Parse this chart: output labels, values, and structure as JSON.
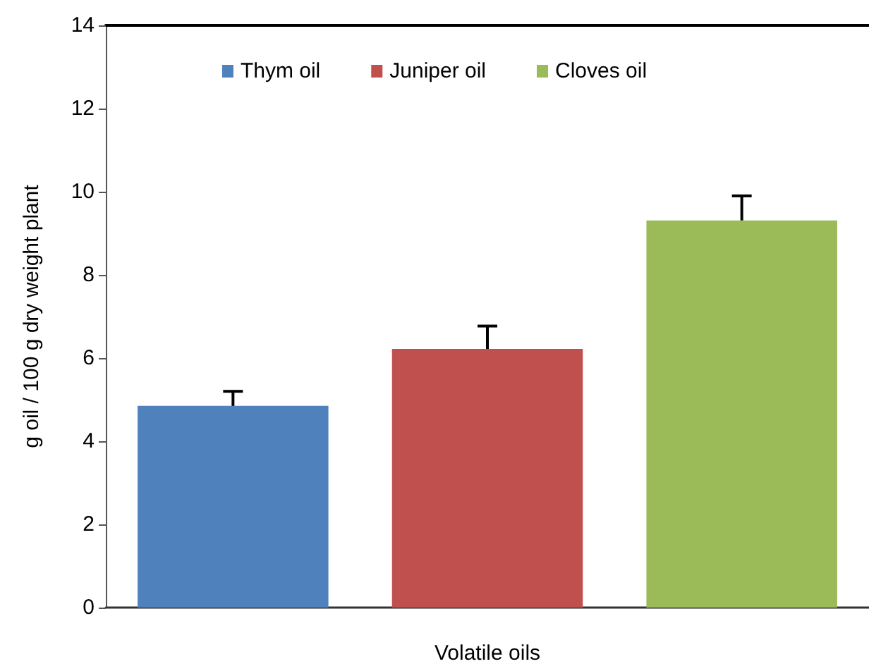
{
  "chart_data": {
    "type": "bar",
    "xlabel": "Volatile oils",
    "ylabel": "g oil / 100 g dry weight plant",
    "categories": [
      null,
      null,
      null
    ],
    "series": [
      {
        "name": "Thym oil",
        "color": "#4f81bd",
        "values": [
          4.85,
          null,
          null
        ],
        "errors": [
          [
            4.85,
            5.2
          ],
          null,
          null
        ]
      },
      {
        "name": "Juniper oil",
        "color": "#c0504d",
        "values": [
          null,
          6.22,
          null
        ],
        "errors": [
          null,
          [
            6.22,
            6.77
          ],
          null
        ]
      },
      {
        "name": "Cloves oil",
        "color": "#9bbb59",
        "values": [
          null,
          null,
          9.31
        ],
        "errors": [
          null,
          null,
          [
            9.31,
            9.9
          ]
        ]
      }
    ],
    "ylim": [
      0,
      14
    ],
    "yticks": [
      0,
      2,
      4,
      6,
      8,
      10,
      12,
      14
    ],
    "grid": false,
    "legend": "top"
  }
}
